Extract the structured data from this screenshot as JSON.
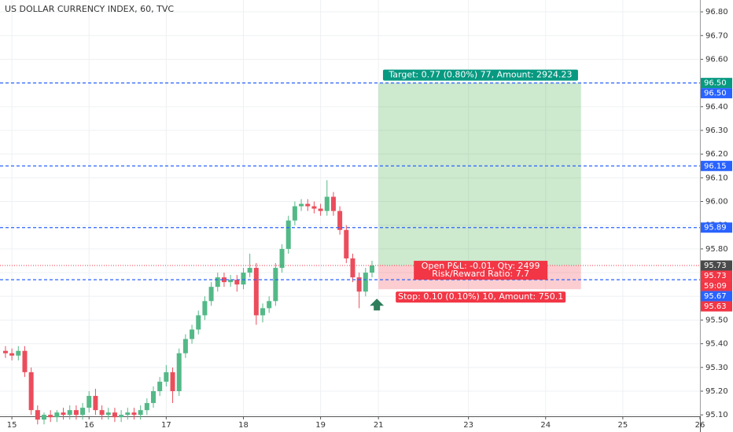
{
  "chart_data": {
    "type": "candlestick",
    "title": "US DOLLAR CURRENCY INDEX, 60, TVC",
    "x": [
      -2,
      0,
      2,
      4,
      6,
      8,
      10,
      12,
      14,
      16,
      18,
      20,
      22,
      24,
      26,
      28,
      30,
      32,
      34,
      36,
      38,
      40,
      42,
      44,
      46,
      48,
      50,
      52,
      54,
      56,
      58,
      60,
      62,
      64,
      66,
      68,
      70,
      72,
      74,
      76,
      78,
      80,
      82,
      84,
      86,
      88,
      90,
      92,
      94,
      96,
      98,
      100,
      102,
      104,
      106,
      108,
      110,
      112
    ],
    "open": [
      95.37,
      95.36,
      95.35,
      95.37,
      95.28,
      95.12,
      95.08,
      95.1,
      95.09,
      95.11,
      95.1,
      95.12,
      95.1,
      95.13,
      95.18,
      95.12,
      95.1,
      95.11,
      95.09,
      95.1,
      95.11,
      95.1,
      95.12,
      95.15,
      95.2,
      95.24,
      95.28,
      95.2,
      95.36,
      95.42,
      95.46,
      95.52,
      95.58,
      95.64,
      95.68,
      95.66,
      95.67,
      95.65,
      95.7,
      95.72,
      95.52,
      95.55,
      95.58,
      95.72,
      95.8,
      95.92,
      95.98,
      95.99,
      95.98,
      95.97,
      95.96,
      96.02,
      95.96,
      95.88,
      95.76,
      95.68,
      95.62,
      95.7
    ],
    "high": [
      95.39,
      95.38,
      95.39,
      95.39,
      95.3,
      95.14,
      95.11,
      95.12,
      95.12,
      95.13,
      95.14,
      95.14,
      95.15,
      95.2,
      95.21,
      95.14,
      95.13,
      95.13,
      95.12,
      95.13,
      95.13,
      95.14,
      95.17,
      95.22,
      95.26,
      95.31,
      95.3,
      95.38,
      95.44,
      95.48,
      95.54,
      95.6,
      95.66,
      95.7,
      95.7,
      95.69,
      95.69,
      95.72,
      95.78,
      95.74,
      95.57,
      95.6,
      95.74,
      95.82,
      95.94,
      96.0,
      96.01,
      96.01,
      96.0,
      95.99,
      96.09,
      96.04,
      95.98,
      95.9,
      95.78,
      95.7,
      95.72,
      95.75
    ],
    "low": [
      95.34,
      95.33,
      95.33,
      95.26,
      95.1,
      95.06,
      95.06,
      95.07,
      95.07,
      95.08,
      95.08,
      95.08,
      95.08,
      95.11,
      95.1,
      95.08,
      95.08,
      95.07,
      95.07,
      95.08,
      95.08,
      95.08,
      95.1,
      95.13,
      95.18,
      95.22,
      95.15,
      95.18,
      95.34,
      95.4,
      95.44,
      95.5,
      95.56,
      95.62,
      95.64,
      95.64,
      95.62,
      95.63,
      95.68,
      95.48,
      95.49,
      95.53,
      95.56,
      95.7,
      95.78,
      95.9,
      95.96,
      95.96,
      95.95,
      95.94,
      95.94,
      95.94,
      95.86,
      95.74,
      95.66,
      95.55,
      95.6,
      95.68
    ],
    "close": [
      95.36,
      95.35,
      95.37,
      95.28,
      95.12,
      95.08,
      95.1,
      95.09,
      95.11,
      95.1,
      95.12,
      95.1,
      95.13,
      95.18,
      95.12,
      95.1,
      95.11,
      95.09,
      95.1,
      95.11,
      95.1,
      95.12,
      95.15,
      95.2,
      95.24,
      95.28,
      95.2,
      95.36,
      95.42,
      95.46,
      95.52,
      95.58,
      95.64,
      95.68,
      95.66,
      95.67,
      95.65,
      95.7,
      95.72,
      95.52,
      95.55,
      95.58,
      95.72,
      95.8,
      95.92,
      95.98,
      95.99,
      95.98,
      95.97,
      95.96,
      96.02,
      95.96,
      95.88,
      95.76,
      95.68,
      95.62,
      95.7,
      95.73
    ],
    "up_color": "#53b987",
    "down_color": "#eb4d5c",
    "xlim": [
      -3.7,
      214
    ],
    "ylim": [
      95.094,
      96.85
    ],
    "xticks": [
      {
        "value": 0,
        "label": "15"
      },
      {
        "value": 24,
        "label": "16"
      },
      {
        "value": 48,
        "label": "17"
      },
      {
        "value": 72,
        "label": "18"
      },
      {
        "value": 96,
        "label": "19"
      },
      {
        "value": 114,
        "label": "21"
      },
      {
        "value": 142,
        "label": "23"
      },
      {
        "value": 166,
        "label": "24"
      },
      {
        "value": 190,
        "label": "25"
      },
      {
        "value": 214,
        "label": "26"
      }
    ],
    "yticks": [
      {
        "value": 95.1,
        "label": "95.10"
      },
      {
        "value": 95.2,
        "label": "95.20"
      },
      {
        "value": 95.3,
        "label": "95.30"
      },
      {
        "value": 95.4,
        "label": "95.40"
      },
      {
        "value": 95.5,
        "label": "95.50"
      },
      {
        "value": 95.6,
        "label": "95.60"
      },
      {
        "value": 95.7,
        "label": "95.70"
      },
      {
        "value": 95.8,
        "label": "95.80"
      },
      {
        "value": 95.9,
        "label": "95.90"
      },
      {
        "value": 96.0,
        "label": "96.00"
      },
      {
        "value": 96.1,
        "label": "96.10"
      },
      {
        "value": 96.2,
        "label": "96.20"
      },
      {
        "value": 96.3,
        "label": "96.30"
      },
      {
        "value": 96.4,
        "label": "96.40"
      },
      {
        "value": 96.5,
        "label": "96.50"
      },
      {
        "value": 96.6,
        "label": "96.60"
      },
      {
        "value": 96.7,
        "label": "96.70"
      },
      {
        "value": 96.8,
        "label": "96.80"
      }
    ],
    "grid": true,
    "hlines": [
      {
        "value": 96.5,
        "label": "96.50",
        "color": "#2962ff"
      },
      {
        "value": 96.15,
        "label": "96.15",
        "color": "#2962ff"
      },
      {
        "value": 95.89,
        "label": "95.89",
        "color": "#2962ff"
      },
      {
        "value": 95.67,
        "label": "95.67",
        "color": "#2962ff"
      }
    ],
    "last_price": {
      "value": 95.73,
      "label": "95.73",
      "color": "#4a4a4a"
    },
    "position": {
      "x_start": 114,
      "x_end": 177,
      "entry": 95.73,
      "target": 96.5,
      "stop": 95.63,
      "entry_label": "95.73",
      "target_label": "96.50",
      "stop_label": "95.63",
      "target_text": "Target: 0.77 (0.80%) 77, Amount: 2924.23",
      "pnl_text": "Open P&L: -0.01, Qty: 2499",
      "rr_text": "Risk/Reward Ratio: 7.7",
      "stop_text": "Stop: 0.10 (0.10%) 10, Amount: 750.1",
      "timer": "59:09",
      "profit_color": "#089981",
      "loss_color": "#f23645"
    }
  }
}
